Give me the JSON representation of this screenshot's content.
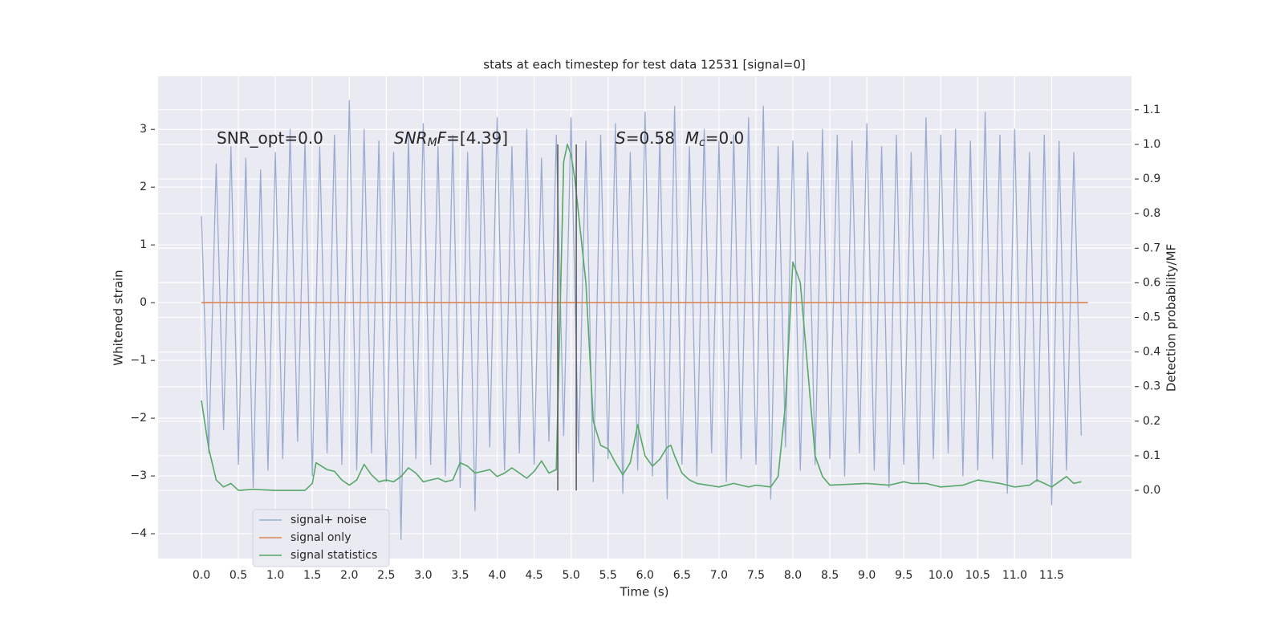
{
  "chart_data": {
    "type": "line",
    "title": "stats at each timestep for test data 12531 [signal=0]",
    "xlabel": "Time (s)",
    "ylabel": "Whitened strain",
    "y2label": "Detection probability/MF",
    "xlim": [
      -0.586,
      12.58
    ],
    "ylim": [
      -4.43,
      3.92
    ],
    "y2lim": [
      -0.197,
      1.197
    ],
    "xticks": [
      {
        "value": 0,
        "label": "0.0"
      },
      0.5,
      {
        "value": 1,
        "label": "1.0"
      },
      1.5,
      {
        "value": 2,
        "label": "2.0"
      },
      2.5,
      {
        "value": 3,
        "label": "3.0"
      },
      3.5,
      {
        "value": 4,
        "label": "4.0"
      },
      4.5,
      {
        "value": 5,
        "label": "5.0"
      },
      5.5,
      {
        "value": 6,
        "label": "6.0"
      },
      6.5,
      {
        "value": 7,
        "label": "7.0"
      },
      7.5,
      {
        "value": 8,
        "label": "8.0"
      },
      8.5,
      {
        "value": 9,
        "label": "9.0"
      },
      9.5,
      {
        "value": 10,
        "label": "10.0"
      },
      10.5,
      {
        "value": 11,
        "label": "11.0"
      },
      11.5
    ],
    "yticks": [
      {
        "value": -4,
        "label": "−4"
      },
      {
        "value": -3,
        "label": "−3"
      },
      {
        "value": -2,
        "label": "−2"
      },
      {
        "value": -1,
        "label": "−1"
      },
      0,
      1,
      2,
      3
    ],
    "y2ticks": [
      {
        "value": 0,
        "label": "0.0"
      },
      0.1,
      0.2,
      0.3,
      0.4,
      0.5,
      0.6,
      0.7,
      0.8,
      0.9,
      {
        "value": 1,
        "label": "1.0"
      },
      1.1
    ],
    "grid": true,
    "legend_loc": "lower left",
    "series": [
      {
        "name": "signal+ noise",
        "color": "#9aabd1",
        "axis": "y",
        "x": [
          0,
          0.1,
          0.2,
          0.3,
          0.4,
          0.5,
          0.6,
          0.7,
          0.8,
          0.9,
          1,
          1.1,
          1.2,
          1.3,
          1.4,
          1.5,
          1.6,
          1.7,
          1.8,
          1.9,
          2,
          2.1,
          2.2,
          2.3,
          2.4,
          2.5,
          2.6,
          2.7,
          2.8,
          2.9,
          3,
          3.1,
          3.2,
          3.3,
          3.4,
          3.5,
          3.6,
          3.7,
          3.8,
          3.9,
          4,
          4.1,
          4.2,
          4.3,
          4.4,
          4.5,
          4.6,
          4.7,
          4.8,
          4.9,
          5,
          5.1,
          5.2,
          5.3,
          5.4,
          5.5,
          5.6,
          5.7,
          5.8,
          5.9,
          6,
          6.1,
          6.2,
          6.3,
          6.4,
          6.5,
          6.6,
          6.7,
          6.8,
          6.9,
          7,
          7.1,
          7.2,
          7.3,
          7.4,
          7.5,
          7.6,
          7.7,
          7.8,
          7.9,
          8,
          8.1,
          8.2,
          8.3,
          8.4,
          8.5,
          8.6,
          8.7,
          8.8,
          8.9,
          9,
          9.1,
          9.2,
          9.3,
          9.4,
          9.5,
          9.6,
          9.7,
          9.8,
          9.9,
          10,
          10.1,
          10.2,
          10.3,
          10.4,
          10.5,
          10.6,
          10.7,
          10.8,
          10.9,
          11,
          11.1,
          11.2,
          11.3,
          11.4,
          11.5,
          11.6,
          11.7,
          11.8,
          11.9
        ],
        "values": [
          1.5,
          -2.6,
          2.4,
          -2.2,
          2.7,
          -2.8,
          2.5,
          -3.2,
          2.3,
          -2.9,
          2.6,
          -2.7,
          3.0,
          -2.4,
          2.8,
          -3.0,
          2.7,
          -2.6,
          2.9,
          -2.8,
          3.5,
          -2.9,
          3.0,
          -2.6,
          2.8,
          -3.1,
          2.6,
          -4.1,
          2.9,
          -2.7,
          3.1,
          -2.8,
          2.7,
          -3.0,
          2.9,
          -3.2,
          2.6,
          -3.6,
          2.8,
          -2.5,
          3.2,
          -2.9,
          2.7,
          -2.6,
          3.0,
          -2.8,
          2.5,
          -2.4,
          2.9,
          -2.3,
          3.2,
          -2.6,
          2.8,
          -3.1,
          2.9,
          -2.7,
          3.1,
          -3.3,
          2.6,
          -2.9,
          3.3,
          -3.0,
          2.9,
          -3.4,
          3.4,
          -2.8,
          2.7,
          -3.0,
          3.0,
          -2.6,
          2.8,
          -3.1,
          2.9,
          -2.7,
          3.2,
          -2.8,
          3.4,
          -3.4,
          2.7,
          -2.5,
          2.8,
          -2.9,
          2.6,
          -2.8,
          3.0,
          -2.7,
          2.9,
          -3.0,
          2.8,
          -2.6,
          3.1,
          -2.9,
          2.7,
          -3.2,
          2.9,
          -2.8,
          2.6,
          -3.1,
          3.2,
          -2.7,
          2.9,
          -2.6,
          3.0,
          -3.0,
          2.8,
          -2.9,
          3.3,
          -2.7,
          2.9,
          -3.3,
          3.0,
          -2.8,
          2.6,
          -3.1,
          2.9,
          -3.5,
          2.8,
          -2.9,
          2.6,
          -2.3
        ]
      },
      {
        "name": "signal only",
        "color": "#dd8452",
        "axis": "y",
        "x": [
          0,
          11.99
        ],
        "values": [
          0,
          0
        ]
      },
      {
        "name": "signal statistics",
        "color": "#55a868",
        "axis": "y2",
        "x": [
          0,
          0.1,
          0.2,
          0.3,
          0.4,
          0.5,
          0.7,
          1.0,
          1.4,
          1.5,
          1.55,
          1.7,
          1.8,
          1.9,
          2.0,
          2.1,
          2.2,
          2.3,
          2.4,
          2.5,
          2.6,
          2.7,
          2.8,
          2.9,
          3.0,
          3.1,
          3.2,
          3.3,
          3.4,
          3.5,
          3.6,
          3.7,
          3.8,
          3.9,
          4.0,
          4.1,
          4.2,
          4.3,
          4.4,
          4.5,
          4.6,
          4.7,
          4.8,
          4.85,
          4.9,
          4.95,
          5.0,
          5.05,
          5.1,
          5.2,
          5.3,
          5.4,
          5.5,
          5.6,
          5.7,
          5.8,
          5.9,
          6.0,
          6.1,
          6.2,
          6.3,
          6.35,
          6.4,
          6.5,
          6.6,
          6.7,
          7.0,
          7.2,
          7.4,
          7.5,
          7.7,
          7.8,
          7.9,
          8.0,
          8.1,
          8.2,
          8.3,
          8.4,
          8.5,
          9.0,
          9.3,
          9.5,
          9.6,
          9.8,
          10.0,
          10.3,
          10.5,
          10.8,
          11.0,
          11.2,
          11.3,
          11.4,
          11.5,
          11.7,
          11.8,
          11.9
        ],
        "values": [
          0.26,
          0.12,
          0.03,
          0.01,
          0.02,
          0.0,
          0.003,
          0.0,
          0.0,
          0.02,
          0.08,
          0.06,
          0.055,
          0.03,
          0.015,
          0.03,
          0.075,
          0.045,
          0.025,
          0.03,
          0.025,
          0.04,
          0.065,
          0.05,
          0.025,
          0.03,
          0.035,
          0.025,
          0.03,
          0.08,
          0.07,
          0.05,
          0.055,
          0.06,
          0.04,
          0.05,
          0.065,
          0.05,
          0.035,
          0.055,
          0.085,
          0.05,
          0.06,
          0.5,
          0.95,
          1.0,
          0.97,
          0.9,
          0.8,
          0.6,
          0.2,
          0.13,
          0.12,
          0.08,
          0.045,
          0.08,
          0.19,
          0.1,
          0.07,
          0.09,
          0.125,
          0.13,
          0.1,
          0.05,
          0.03,
          0.02,
          0.01,
          0.02,
          0.01,
          0.015,
          0.01,
          0.04,
          0.25,
          0.66,
          0.6,
          0.35,
          0.1,
          0.04,
          0.015,
          0.02,
          0.015,
          0.025,
          0.02,
          0.02,
          0.01,
          0.015,
          0.03,
          0.02,
          0.01,
          0.015,
          0.03,
          0.02,
          0.01,
          0.04,
          0.02,
          0.025
        ]
      }
    ],
    "vlines": {
      "x": [
        4.82,
        5.07
      ],
      "ymin": 0,
      "ymax": 1,
      "axis": "y2",
      "color": "#555555"
    },
    "annotations": [
      {
        "parts": [
          {
            "text": "SNR_opt=0.0"
          }
        ]
      },
      {
        "parts": [
          {
            "text": "SNR",
            "italic": true
          },
          {
            "text": "M",
            "italic": true,
            "sub": true
          },
          {
            "text": "F",
            "italic": true
          },
          {
            "text": "=[4.39]"
          }
        ]
      },
      {
        "parts": [
          {
            "text": "S",
            "italic": true
          },
          {
            "text": "=0.58  "
          },
          {
            "text": "M",
            "italic": true
          },
          {
            "text": "c",
            "italic": true,
            "sub": true
          },
          {
            "text": "=0.0"
          }
        ]
      }
    ]
  }
}
